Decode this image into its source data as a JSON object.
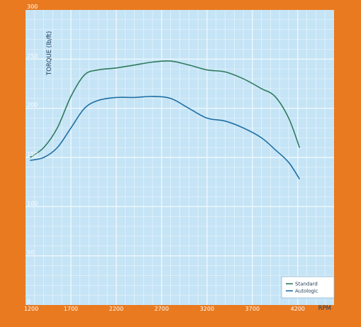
{
  "colors": {
    "frame": "#e97a1f",
    "plot_bg": "#c5e4f6",
    "grid": "#eef8fd",
    "standard": "#2f7a5c",
    "autologic": "#1f6fa3"
  },
  "chart_data": {
    "type": "line",
    "title": "",
    "xlabel": "RPM",
    "ylabel": "TORQUE (lb/ft)",
    "xlim": [
      1200,
      4600
    ],
    "ylim": [
      0,
      300
    ],
    "x_ticks": [
      1200,
      1700,
      2200,
      2700,
      3200,
      3700,
      4200
    ],
    "y_ticks": [
      0,
      50,
      100,
      150,
      200,
      250,
      300
    ],
    "grid": true,
    "legend_position": "bottom-right",
    "x": [
      1250,
      1400,
      1550,
      1700,
      1850,
      2000,
      2200,
      2400,
      2600,
      2800,
      3000,
      3200,
      3400,
      3600,
      3800,
      3950,
      4100,
      4220
    ],
    "series": [
      {
        "name": "Standard",
        "color_key": "standard",
        "values": [
          150,
          160,
          180,
          212,
          234,
          239,
          241,
          244,
          247,
          248,
          244,
          239,
          237,
          230,
          220,
          212,
          190,
          160
        ]
      },
      {
        "name": "Autologic",
        "color_key": "autologic",
        "values": [
          147,
          150,
          160,
          180,
          200,
          208,
          211,
          211,
          212,
          210,
          200,
          190,
          187,
          180,
          170,
          158,
          145,
          128
        ]
      }
    ]
  }
}
